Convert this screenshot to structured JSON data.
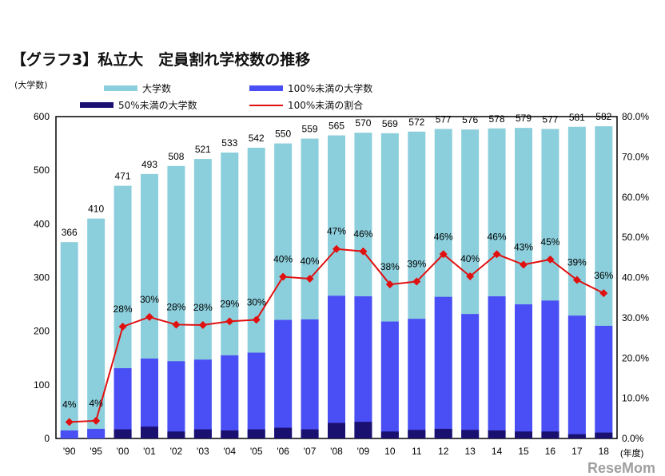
{
  "title": "【グラフ3】私立大　定員割れ学校数の推移",
  "watermark": "ReseMom",
  "colors": {
    "total": "#8ccfdc",
    "under100": "#4a4ef5",
    "under50": "#1a1070",
    "ratio": "#e01010"
  },
  "chart_data": {
    "type": "bar",
    "title": "【グラフ3】私立大　定員割れ学校数の推移",
    "ylabel": "(大学数)",
    "xlabel": "(年度)",
    "ylim": [
      0,
      600
    ],
    "yticks": [
      0,
      100,
      200,
      300,
      400,
      500,
      600
    ],
    "y2lim": [
      0,
      80
    ],
    "y2ticks": [
      "0.0%",
      "10.0%",
      "20.0%",
      "30.0%",
      "40.0%",
      "50.0%",
      "60.0%",
      "70.0%",
      "80.0%"
    ],
    "legend_position": "top",
    "categories": [
      "'90",
      "'95",
      "'00",
      "'01",
      "'02",
      "'03",
      "'04",
      "'05",
      "'06",
      "'07",
      "'08",
      "'09",
      "10",
      "11",
      "12",
      "13",
      "14",
      "15",
      "16",
      "17",
      "18"
    ],
    "series": [
      {
        "name": "大学数",
        "values": [
          366,
          410,
          471,
          493,
          508,
          521,
          533,
          542,
          550,
          559,
          565,
          570,
          569,
          572,
          577,
          576,
          578,
          579,
          577,
          581,
          582
        ]
      },
      {
        "name": "100%未満の大学数",
        "values": [
          15,
          18,
          131,
          149,
          144,
          147,
          155,
          160,
          221,
          222,
          266,
          265,
          218,
          223,
          264,
          232,
          265,
          250,
          257,
          229,
          210
        ]
      },
      {
        "name": "50%未満の大学数",
        "values": [
          0,
          0,
          17,
          22,
          13,
          17,
          15,
          17,
          20,
          17,
          29,
          31,
          13,
          16,
          18,
          16,
          15,
          13,
          13,
          8,
          11
        ]
      },
      {
        "name": "100%未満の割合",
        "axis": "right",
        "values": [
          4.1,
          4.4,
          27.8,
          30.2,
          28.3,
          28.2,
          29.1,
          29.5,
          40.2,
          39.7,
          47.1,
          46.5,
          38.3,
          39.0,
          45.8,
          40.3,
          45.8,
          43.2,
          44.5,
          39.4,
          36.1
        ],
        "labels": [
          "4%",
          "4%",
          "28%",
          "30%",
          "28%",
          "28%",
          "29%",
          "30%",
          "40%",
          "40%",
          "47%",
          "46%",
          "38%",
          "39%",
          "46%",
          "40%",
          "46%",
          "43%",
          "45%",
          "39%",
          "36%"
        ]
      }
    ]
  }
}
